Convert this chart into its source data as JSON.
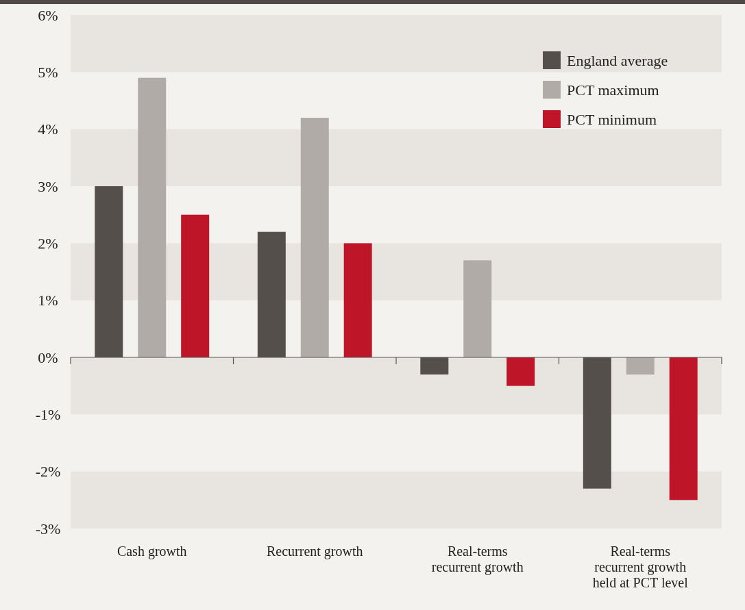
{
  "chart_data": {
    "type": "bar",
    "categories": [
      "Cash growth",
      "Recurrent growth",
      "Real-terms recurrent growth",
      "Real-terms recurrent growth held at PCT level"
    ],
    "series": [
      {
        "name": "England average",
        "color": "#544f4b",
        "values": [
          3.0,
          2.2,
          -0.3,
          -2.3
        ]
      },
      {
        "name": "PCT maximum",
        "color": "#b0aba7",
        "values": [
          4.9,
          4.2,
          1.7,
          -0.3
        ]
      },
      {
        "name": "PCT minimum",
        "color": "#be1528",
        "values": [
          2.5,
          2.0,
          -0.5,
          -2.5
        ]
      }
    ],
    "ylim": [
      -3,
      6
    ],
    "yticks": [
      {
        "value": -3,
        "label": "-3%"
      },
      {
        "value": -2,
        "label": "-2%"
      },
      {
        "value": -1,
        "label": "-1%"
      },
      {
        "value": 0,
        "label": "0%"
      },
      {
        "value": 1,
        "label": "1%"
      },
      {
        "value": 2,
        "label": "2%"
      },
      {
        "value": 3,
        "label": "3%"
      },
      {
        "value": 4,
        "label": "4%"
      },
      {
        "value": 5,
        "label": "5%"
      },
      {
        "value": 6,
        "label": "6%"
      }
    ],
    "grid": "y",
    "legend": "top right"
  }
}
